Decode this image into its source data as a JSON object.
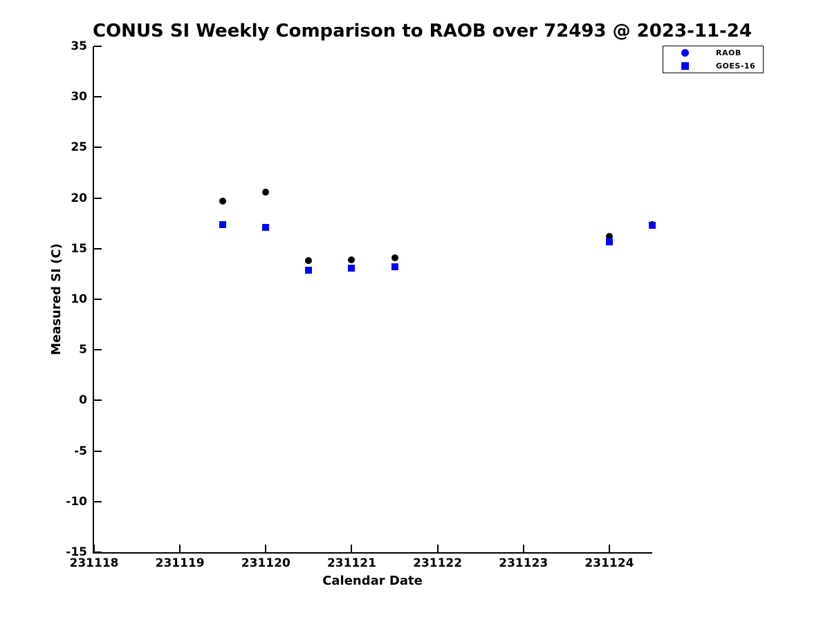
{
  "chart_data": {
    "type": "scatter",
    "title": "CONUS SI Weekly Comparison to RAOB over 72493 @ 2023-11-24",
    "xlabel": "Calendar Date",
    "ylabel": "Measured SI (C)",
    "xlim": [
      231118,
      231124.5
    ],
    "ylim": [
      -15,
      35
    ],
    "x_ticks": [
      231118,
      231119,
      231120,
      231121,
      231122,
      231123,
      231124
    ],
    "y_ticks": [
      35,
      30,
      25,
      20,
      15,
      10,
      5,
      0,
      -5,
      -10,
      -15
    ],
    "grid": false,
    "legend_position": "outside-top-right",
    "colors": {
      "blue": "#0000ff",
      "black": "#000000",
      "background": "#ffffff"
    },
    "series": [
      {
        "name": "RAOB",
        "marker": "circle",
        "legend_marker_color": "#0000ff",
        "plot_marker_color": "#000000",
        "x": [
          231119.5,
          231120.0,
          231120.5,
          231121.0,
          231121.5,
          231124.0,
          231124.5
        ],
        "y": [
          19.7,
          20.6,
          13.8,
          13.9,
          14.1,
          16.2,
          17.4
        ]
      },
      {
        "name": "GOES-16",
        "marker": "square",
        "legend_marker_color": "#0000ff",
        "plot_marker_color": "#0000ff",
        "x": [
          231119.5,
          231120.0,
          231120.5,
          231121.0,
          231121.5,
          231124.0,
          231124.5
        ],
        "y": [
          17.4,
          17.1,
          12.9,
          13.1,
          13.2,
          15.7,
          17.3
        ]
      }
    ]
  }
}
